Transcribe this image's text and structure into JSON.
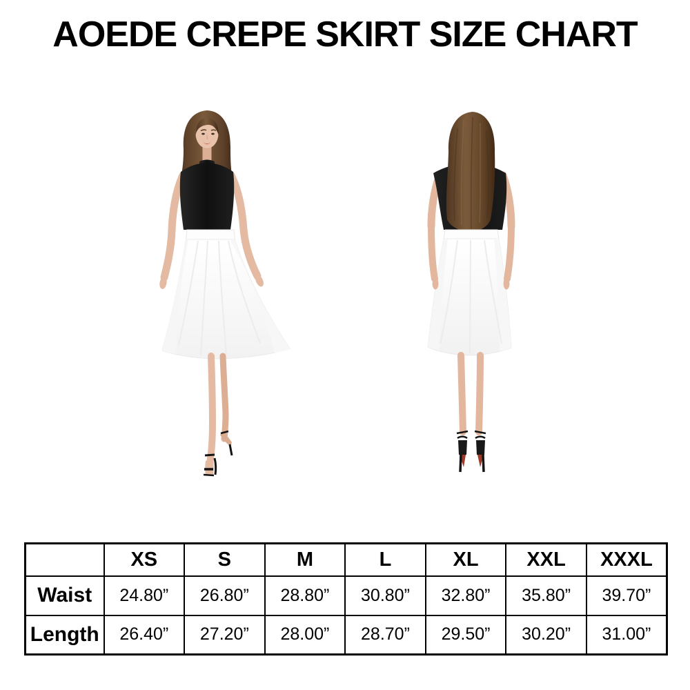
{
  "title": "AOEDE CREPE SKIRT SIZE CHART",
  "size_chart": {
    "corner_label": "",
    "columns": [
      "XS",
      "S",
      "M",
      "L",
      "XL",
      "XXL",
      "XXXL"
    ],
    "rows": [
      {
        "label": "Waist",
        "values": [
          "24.80”",
          "26.80”",
          "28.80”",
          "30.80”",
          "32.80”",
          "35.80”",
          "39.70”"
        ]
      },
      {
        "label": "Length",
        "values": [
          "26.40”",
          "27.20”",
          "28.00”",
          "28.70”",
          "29.50”",
          "30.20”",
          "31.00”"
        ]
      }
    ]
  }
}
